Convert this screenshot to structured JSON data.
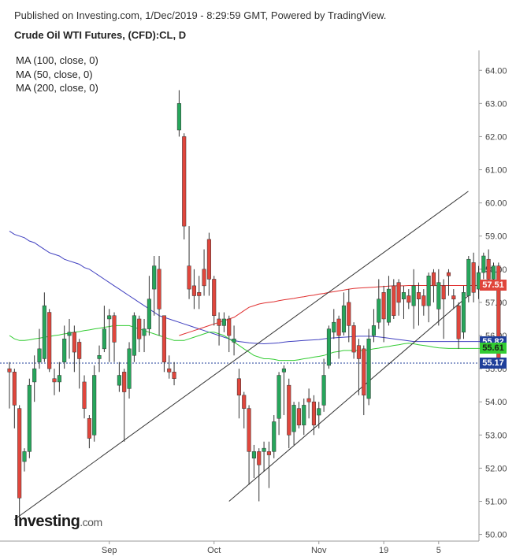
{
  "header": {
    "published": "Published on Investing.com, 1/Dec/2019 - 8:29:59 GMT, Powered by TradingView.",
    "title": "Crude Oil WTI Futures, (CFD):CL, D"
  },
  "legend": [
    "MA (100, close, 0)",
    "MA (50, close, 0)",
    "MA (200, close, 0)"
  ],
  "logo": {
    "name": "Investing",
    "domain": ".com"
  },
  "colors": {
    "up": "#26a65b",
    "down": "#e0463c",
    "ma100": "#4040c0",
    "ma50": "#33cc33",
    "ma200": "#e03030",
    "trend": "#333333",
    "last": "#1f3f9a"
  },
  "chart_data": {
    "type": "candlestick",
    "ylim": [
      49.8,
      64.6
    ],
    "y_ticks": [
      "64.00",
      "63.00",
      "62.00",
      "61.00",
      "60.00",
      "59.00",
      "58.00",
      "57.00",
      "56.00",
      "55.00",
      "54.00",
      "53.00",
      "52.00",
      "51.00",
      "50.00"
    ],
    "x_ticks": [
      {
        "label": "Sep",
        "index": 20
      },
      {
        "label": "Oct",
        "index": 41
      },
      {
        "label": "Nov",
        "index": 62
      },
      {
        "label": "19",
        "index": 75
      },
      {
        "label": "5",
        "index": 86
      }
    ],
    "price_tags": [
      {
        "label": "57.51",
        "value": 57.51,
        "color": "#e0463c"
      },
      {
        "label": "55.82",
        "value": 55.82,
        "color": "#1f3f9a"
      },
      {
        "label": "55.61",
        "value": 55.61,
        "color": "#33cc33"
      },
      {
        "label": "55.17",
        "value": 55.17,
        "color": "#1f3f9a"
      }
    ],
    "last_price": 55.17,
    "candles": [
      [
        55.0,
        54.9,
        55.2,
        53.8
      ],
      [
        54.9,
        53.9,
        55.0,
        53.2
      ],
      [
        53.8,
        51.1,
        53.9,
        50.5
      ],
      [
        52.2,
        52.5,
        52.6,
        51.9
      ],
      [
        52.5,
        54.5,
        54.7,
        52.3
      ],
      [
        54.6,
        55.0,
        55.4,
        54.0
      ],
      [
        55.2,
        55.6,
        56.2,
        55.0
      ],
      [
        55.3,
        56.9,
        57.3,
        55.2
      ],
      [
        56.7,
        55.0,
        56.8,
        54.9
      ],
      [
        54.7,
        54.6,
        55.0,
        54.2
      ],
      [
        54.6,
        54.8,
        55.2,
        54.3
      ],
      [
        55.2,
        55.9,
        56.3,
        55.0
      ],
      [
        56.0,
        56.1,
        56.5,
        55.3
      ],
      [
        56.1,
        55.5,
        56.3,
        54.9
      ],
      [
        55.8,
        55.3,
        55.9,
        54.4
      ],
      [
        54.6,
        53.8,
        54.8,
        53.5
      ],
      [
        53.5,
        52.9,
        53.6,
        52.6
      ],
      [
        53.0,
        54.8,
        55.1,
        52.8
      ],
      [
        55.3,
        55.4,
        55.7,
        54.9
      ],
      [
        55.6,
        56.2,
        56.9,
        55.5
      ],
      [
        56.5,
        56.6,
        56.8,
        55.2
      ],
      [
        56.6,
        55.8,
        56.7,
        55.2
      ],
      [
        54.5,
        54.8,
        55.2,
        54.3
      ],
      [
        54.9,
        54.3,
        55.0,
        52.8
      ],
      [
        54.4,
        55.6,
        55.8,
        54.1
      ],
      [
        55.4,
        56.6,
        56.7,
        55.2
      ],
      [
        56.5,
        55.9,
        56.6,
        55.5
      ],
      [
        56.0,
        56.2,
        56.5,
        55.5
      ],
      [
        56.2,
        57.1,
        57.8,
        56.0
      ],
      [
        57.4,
        58.1,
        58.4,
        56.6
      ],
      [
        58.0,
        56.8,
        58.4,
        56.0
      ],
      [
        56.6,
        55.2,
        56.6,
        54.9
      ],
      [
        55.0,
        54.9,
        55.4,
        54.7
      ],
      [
        54.9,
        54.7,
        55.2,
        54.5
      ],
      [
        62.2,
        63.0,
        63.4,
        62.0
      ],
      [
        62.0,
        59.3,
        62.1,
        58.9
      ],
      [
        58.1,
        57.4,
        59.3,
        57.1
      ],
      [
        57.5,
        57.2,
        58.0,
        56.8
      ],
      [
        57.3,
        57.2,
        57.8,
        56.8
      ],
      [
        58.0,
        57.5,
        58.6,
        57.2
      ],
      [
        58.9,
        57.7,
        59.1,
        57.2
      ],
      [
        57.7,
        56.6,
        57.8,
        56.3
      ],
      [
        56.5,
        56.3,
        56.7,
        55.7
      ],
      [
        56.3,
        56.5,
        56.7,
        56.1
      ],
      [
        56.5,
        56.0,
        56.6,
        55.5
      ],
      [
        55.8,
        55.9,
        56.3,
        55.4
      ],
      [
        54.7,
        54.2,
        55.0,
        53.5
      ],
      [
        54.2,
        53.8,
        54.3,
        53.2
      ],
      [
        53.8,
        52.5,
        53.9,
        51.5
      ],
      [
        52.3,
        52.5,
        52.7,
        51.7
      ],
      [
        52.5,
        52.1,
        52.6,
        51.0
      ],
      [
        52.5,
        52.6,
        52.8,
        51.9
      ],
      [
        52.5,
        52.4,
        52.8,
        51.4
      ],
      [
        52.5,
        53.4,
        53.6,
        52.3
      ],
      [
        53.5,
        54.8,
        54.9,
        53.0
      ],
      [
        54.9,
        55.0,
        55.1,
        53.6
      ],
      [
        54.5,
        53.0,
        54.7,
        52.6
      ],
      [
        53.1,
        53.9,
        54.0,
        52.7
      ],
      [
        53.8,
        53.3,
        54.0,
        53.2
      ],
      [
        53.3,
        53.9,
        54.1,
        53.0
      ],
      [
        54.1,
        54.0,
        54.4,
        53.5
      ],
      [
        54.0,
        53.3,
        54.2,
        53.0
      ],
      [
        53.6,
        53.8,
        54.0,
        53.2
      ],
      [
        53.9,
        54.8,
        55.3,
        53.7
      ],
      [
        55.1,
        56.2,
        56.3,
        55.0
      ],
      [
        56.1,
        56.4,
        56.8,
        55.9
      ],
      [
        56.5,
        56.0,
        56.6,
        55.3
      ],
      [
        56.1,
        56.9,
        57.3,
        56.0
      ],
      [
        57.0,
        56.3,
        57.4,
        55.8
      ],
      [
        56.3,
        55.5,
        56.4,
        55.3
      ],
      [
        55.7,
        55.3,
        55.9,
        54.2
      ],
      [
        55.6,
        54.2,
        55.7,
        53.6
      ],
      [
        54.1,
        55.9,
        56.2,
        53.9
      ],
      [
        56.0,
        56.3,
        56.8,
        55.8
      ],
      [
        56.4,
        57.1,
        57.7,
        56.2
      ],
      [
        57.3,
        56.5,
        57.5,
        55.8
      ],
      [
        56.4,
        57.4,
        57.8,
        56.3
      ],
      [
        57.5,
        56.6,
        57.7,
        56.5
      ],
      [
        57.6,
        57.0,
        57.7,
        56.6
      ],
      [
        57.1,
        57.3,
        57.5,
        56.5
      ],
      [
        57.2,
        57.0,
        57.4,
        56.8
      ],
      [
        56.9,
        57.5,
        58.0,
        56.2
      ],
      [
        57.3,
        57.1,
        57.6,
        56.3
      ],
      [
        57.2,
        56.9,
        57.4,
        56.6
      ],
      [
        56.9,
        57.8,
        57.9,
        56.4
      ],
      [
        57.9,
        57.5,
        58.0,
        57.0
      ],
      [
        56.8,
        57.6,
        58.0,
        56.3
      ],
      [
        57.5,
        57.1,
        57.7,
        55.9
      ],
      [
        57.9,
        57.8,
        58.0,
        57.2
      ],
      [
        57.2,
        57.1,
        57.4,
        56.8
      ],
      [
        56.9,
        55.9,
        57.0,
        55.6
      ],
      [
        56.1,
        57.3,
        57.5,
        55.9
      ],
      [
        57.2,
        58.3,
        58.4,
        57.0
      ],
      [
        58.2,
        57.3,
        58.5,
        57.0
      ],
      [
        57.4,
        57.9,
        58.1,
        57.1
      ],
      [
        57.9,
        58.4,
        58.5,
        57.7
      ],
      [
        58.3,
        57.7,
        58.6,
        57.5
      ],
      [
        57.7,
        58.1,
        58.2,
        57.6
      ],
      [
        58.1,
        55.2,
        58.2,
        55.0
      ]
    ],
    "ma100": [
      59.15,
      59.05,
      59.0,
      58.95,
      58.85,
      58.8,
      58.7,
      58.6,
      58.5,
      58.45,
      58.4,
      58.3,
      58.25,
      58.2,
      58.15,
      58.05,
      58.0,
      57.9,
      57.8,
      57.7,
      57.6,
      57.5,
      57.4,
      57.3,
      57.2,
      57.1,
      57.0,
      56.9,
      56.8,
      56.7,
      56.6,
      56.55,
      56.5,
      56.45,
      56.4,
      56.35,
      56.3,
      56.25,
      56.2,
      56.15,
      56.1,
      56.05,
      56.0,
      55.95,
      55.9,
      55.85,
      55.82,
      55.8,
      55.78,
      55.77,
      55.76,
      55.75,
      55.76,
      55.77,
      55.78,
      55.8,
      55.82,
      55.83,
      55.84,
      55.85,
      55.86,
      55.87,
      55.88,
      55.9,
      55.92,
      55.93,
      55.94,
      55.95,
      55.96,
      55.97,
      55.98,
      55.98,
      55.98,
      55.97,
      55.96,
      55.94,
      55.92,
      55.9,
      55.88,
      55.86,
      55.84,
      55.82,
      55.82,
      55.82,
      55.82,
      55.82,
      55.82,
      55.82,
      55.82,
      55.82,
      55.82,
      55.82,
      55.82,
      55.82,
      55.82,
      55.82,
      55.82,
      55.82,
      55.82
    ],
    "ma50": [
      56.0,
      55.9,
      55.85,
      55.85,
      55.87,
      55.9,
      55.92,
      55.95,
      55.97,
      56.0,
      56.02,
      56.05,
      56.07,
      56.1,
      56.12,
      56.15,
      56.17,
      56.2,
      56.22,
      56.25,
      56.27,
      56.3,
      56.3,
      56.3,
      56.3,
      56.25,
      56.2,
      56.15,
      56.1,
      56.05,
      56.0,
      55.95,
      55.9,
      55.85,
      55.85,
      55.85,
      55.9,
      55.95,
      56.0,
      56.05,
      56.1,
      56.1,
      56.05,
      56.0,
      55.9,
      55.8,
      55.7,
      55.6,
      55.5,
      55.4,
      55.35,
      55.3,
      55.3,
      55.28,
      55.25,
      55.25,
      55.25,
      55.25,
      55.27,
      55.3,
      55.32,
      55.35,
      55.37,
      55.4,
      55.45,
      55.5,
      55.52,
      55.55,
      55.55,
      55.55,
      55.55,
      55.55,
      55.57,
      55.6,
      55.62,
      55.65,
      55.67,
      55.7,
      55.72,
      55.75,
      55.77,
      55.75,
      55.72,
      55.7,
      55.68,
      55.65,
      55.63,
      55.62,
      55.61,
      55.61,
      55.61,
      55.61,
      55.61,
      55.61,
      55.61,
      55.61,
      55.61,
      55.61,
      55.61
    ],
    "ma200": [
      null,
      null,
      null,
      null,
      null,
      null,
      null,
      null,
      null,
      null,
      null,
      null,
      null,
      null,
      null,
      null,
      null,
      null,
      null,
      null,
      null,
      null,
      null,
      null,
      null,
      null,
      null,
      null,
      null,
      null,
      null,
      null,
      null,
      null,
      56.0,
      56.05,
      56.1,
      56.15,
      56.2,
      56.25,
      56.3,
      56.35,
      56.4,
      56.45,
      56.5,
      56.55,
      56.65,
      56.75,
      56.85,
      56.9,
      56.95,
      56.98,
      57.0,
      57.02,
      57.05,
      57.08,
      57.1,
      57.12,
      57.15,
      57.17,
      57.2,
      57.22,
      57.25,
      57.27,
      57.3,
      57.32,
      57.35,
      57.37,
      57.4,
      57.42,
      57.43,
      57.44,
      57.45,
      57.46,
      57.47,
      57.48,
      57.49,
      57.5,
      57.5,
      57.5,
      57.51,
      57.51,
      57.51,
      57.51,
      57.51,
      57.51,
      57.51,
      57.51,
      57.51,
      57.51,
      57.51,
      57.51,
      57.51,
      57.51,
      57.51,
      57.51,
      57.51,
      57.51,
      57.51
    ],
    "trendlines": [
      {
        "from": [
          1,
          50.45
        ],
        "to": [
          91,
          60.35
        ]
      },
      {
        "from": [
          44,
          51.0
        ],
        "to": [
          91,
          57.2
        ]
      }
    ]
  }
}
